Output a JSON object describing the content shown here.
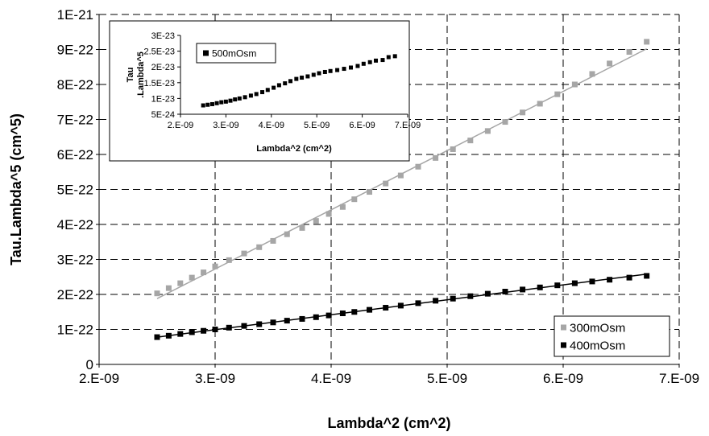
{
  "chart_data": [
    {
      "type": "scatter",
      "xlabel": "Lambda^2 (cm^2)",
      "ylabel": "Tau.Lambda^5 (cm^5)",
      "xlim": [
        2e-09,
        7e-09
      ],
      "ylim": [
        0,
        1e-21
      ],
      "x_ticks": [
        "2.E-09",
        "3.E-09",
        "4.E-09",
        "5.E-09",
        "6.E-09",
        "7.E-09"
      ],
      "y_ticks": [
        "0",
        "1E-22",
        "2E-22",
        "3E-22",
        "4E-22",
        "5E-22",
        "6E-22",
        "7E-22",
        "8E-22",
        "9E-22",
        "1E-21"
      ],
      "grid": "dashed",
      "legend_position": "bottom-right",
      "series": [
        {
          "name": "300mOsm",
          "color": "#a6a6a6",
          "x": [
            2.5e-09,
            2.6e-09,
            2.7e-09,
            2.8e-09,
            2.9e-09,
            3e-09,
            3.12e-09,
            3.25e-09,
            3.38e-09,
            3.5e-09,
            3.62e-09,
            3.75e-09,
            3.87e-09,
            3.98e-09,
            4.1e-09,
            4.2e-09,
            4.33e-09,
            4.47e-09,
            4.6e-09,
            4.75e-09,
            4.9e-09,
            5.05e-09,
            5.2e-09,
            5.35e-09,
            5.5e-09,
            5.65e-09,
            5.8e-09,
            5.95e-09,
            6.1e-09,
            6.25e-09,
            6.4e-09,
            6.57e-09,
            6.72e-09
          ],
          "y": [
            2.03e-22,
            2.18e-22,
            2.32e-22,
            2.48e-22,
            2.63e-22,
            2.8e-22,
            2.98e-22,
            3.17e-22,
            3.35e-22,
            3.53e-22,
            3.72e-22,
            3.9e-22,
            4.1e-22,
            4.3e-22,
            4.5e-22,
            4.72e-22,
            4.93e-22,
            5.17e-22,
            5.4e-22,
            5.65e-22,
            5.9e-22,
            6.15e-22,
            6.4e-22,
            6.67e-22,
            6.93e-22,
            7.2e-22,
            7.45e-22,
            7.72e-22,
            8e-22,
            8.3e-22,
            8.6e-22,
            8.93e-22,
            9.22e-22
          ],
          "trendline": {
            "x": [
              2.5e-09,
              6.72e-09
            ],
            "y": [
              1.88e-22,
              9.02e-22
            ]
          }
        },
        {
          "name": "400mOsm",
          "color": "#000000",
          "x": [
            2.5e-09,
            2.6e-09,
            2.7e-09,
            2.8e-09,
            2.9e-09,
            3e-09,
            3.12e-09,
            3.25e-09,
            3.38e-09,
            3.5e-09,
            3.62e-09,
            3.75e-09,
            3.87e-09,
            3.98e-09,
            4.1e-09,
            4.2e-09,
            4.33e-09,
            4.47e-09,
            4.6e-09,
            4.75e-09,
            4.9e-09,
            5.05e-09,
            5.2e-09,
            5.35e-09,
            5.5e-09,
            5.65e-09,
            5.8e-09,
            5.95e-09,
            6.1e-09,
            6.25e-09,
            6.4e-09,
            6.57e-09,
            6.72e-09
          ],
          "y": [
            7.8e-23,
            8.2e-23,
            8.7e-23,
            9.2e-23,
            9.6e-23,
            1e-22,
            1.05e-22,
            1.1e-22,
            1.15e-22,
            1.2e-22,
            1.25e-22,
            1.3e-22,
            1.35e-22,
            1.4e-22,
            1.46e-22,
            1.5e-22,
            1.56e-22,
            1.62e-22,
            1.68e-22,
            1.75e-22,
            1.82e-22,
            1.88e-22,
            1.95e-22,
            2.02e-22,
            2.08e-22,
            2.14e-22,
            2.2e-22,
            2.26e-22,
            2.32e-22,
            2.37e-22,
            2.42e-22,
            2.48e-22,
            2.53e-22
          ],
          "trendline": {
            "x": [
              2.5e-09,
              6.72e-09
            ],
            "y": [
              7.8e-23,
              2.58e-22
            ]
          }
        }
      ]
    },
    {
      "type": "scatter",
      "xlabel": "Lambda^2 (cm^2)",
      "ylabel_lines": [
        "Tau",
        ".Lambda^5"
      ],
      "xlim": [
        2e-09,
        7e-09
      ],
      "ylim": [
        5e-24,
        3e-23
      ],
      "x_ticks": [
        "2.E-09",
        "3.E-09",
        "4.E-09",
        "5.E-09",
        "6.E-09",
        "7.E-09"
      ],
      "y_ticks": [
        "5E-24",
        "1E-23",
        "1.5E-23",
        "2E-23",
        "2.5E-23",
        "3E-23"
      ],
      "grid": "none",
      "legend_position": "top-left",
      "series": [
        {
          "name": "500mOsm",
          "color": "#000000",
          "x": [
            2.5e-09,
            2.6e-09,
            2.7e-09,
            2.8e-09,
            2.9e-09,
            3e-09,
            3.1e-09,
            3.2e-09,
            3.3e-09,
            3.42e-09,
            3.55e-09,
            3.67e-09,
            3.8e-09,
            3.92e-09,
            4.05e-09,
            4.17e-09,
            4.3e-09,
            4.42e-09,
            4.55e-09,
            4.67e-09,
            4.8e-09,
            4.93e-09,
            5.05e-09,
            5.18e-09,
            5.3e-09,
            5.45e-09,
            5.6e-09,
            5.75e-09,
            5.9e-09,
            6.03e-09,
            6.17e-09,
            6.3e-09,
            6.45e-09,
            6.58e-09,
            6.72e-09
          ],
          "y": [
            7.8e-24,
            8e-24,
            8.2e-24,
            8.5e-24,
            8.8e-24,
            9e-24,
            9.3e-24,
            9.7e-24,
            1e-23,
            1.04e-23,
            1.09e-23,
            1.14e-23,
            1.2e-23,
            1.27e-23,
            1.34e-23,
            1.42e-23,
            1.48e-23,
            1.55e-23,
            1.62e-23,
            1.66e-23,
            1.7e-23,
            1.75e-23,
            1.8e-23,
            1.84e-23,
            1.87e-23,
            1.9e-23,
            1.94e-23,
            1.98e-23,
            2.03e-23,
            2.1e-23,
            2.15e-23,
            2.2e-23,
            2.22e-23,
            2.31e-23,
            2.34e-23
          ],
          "trendline": null
        }
      ]
    }
  ]
}
